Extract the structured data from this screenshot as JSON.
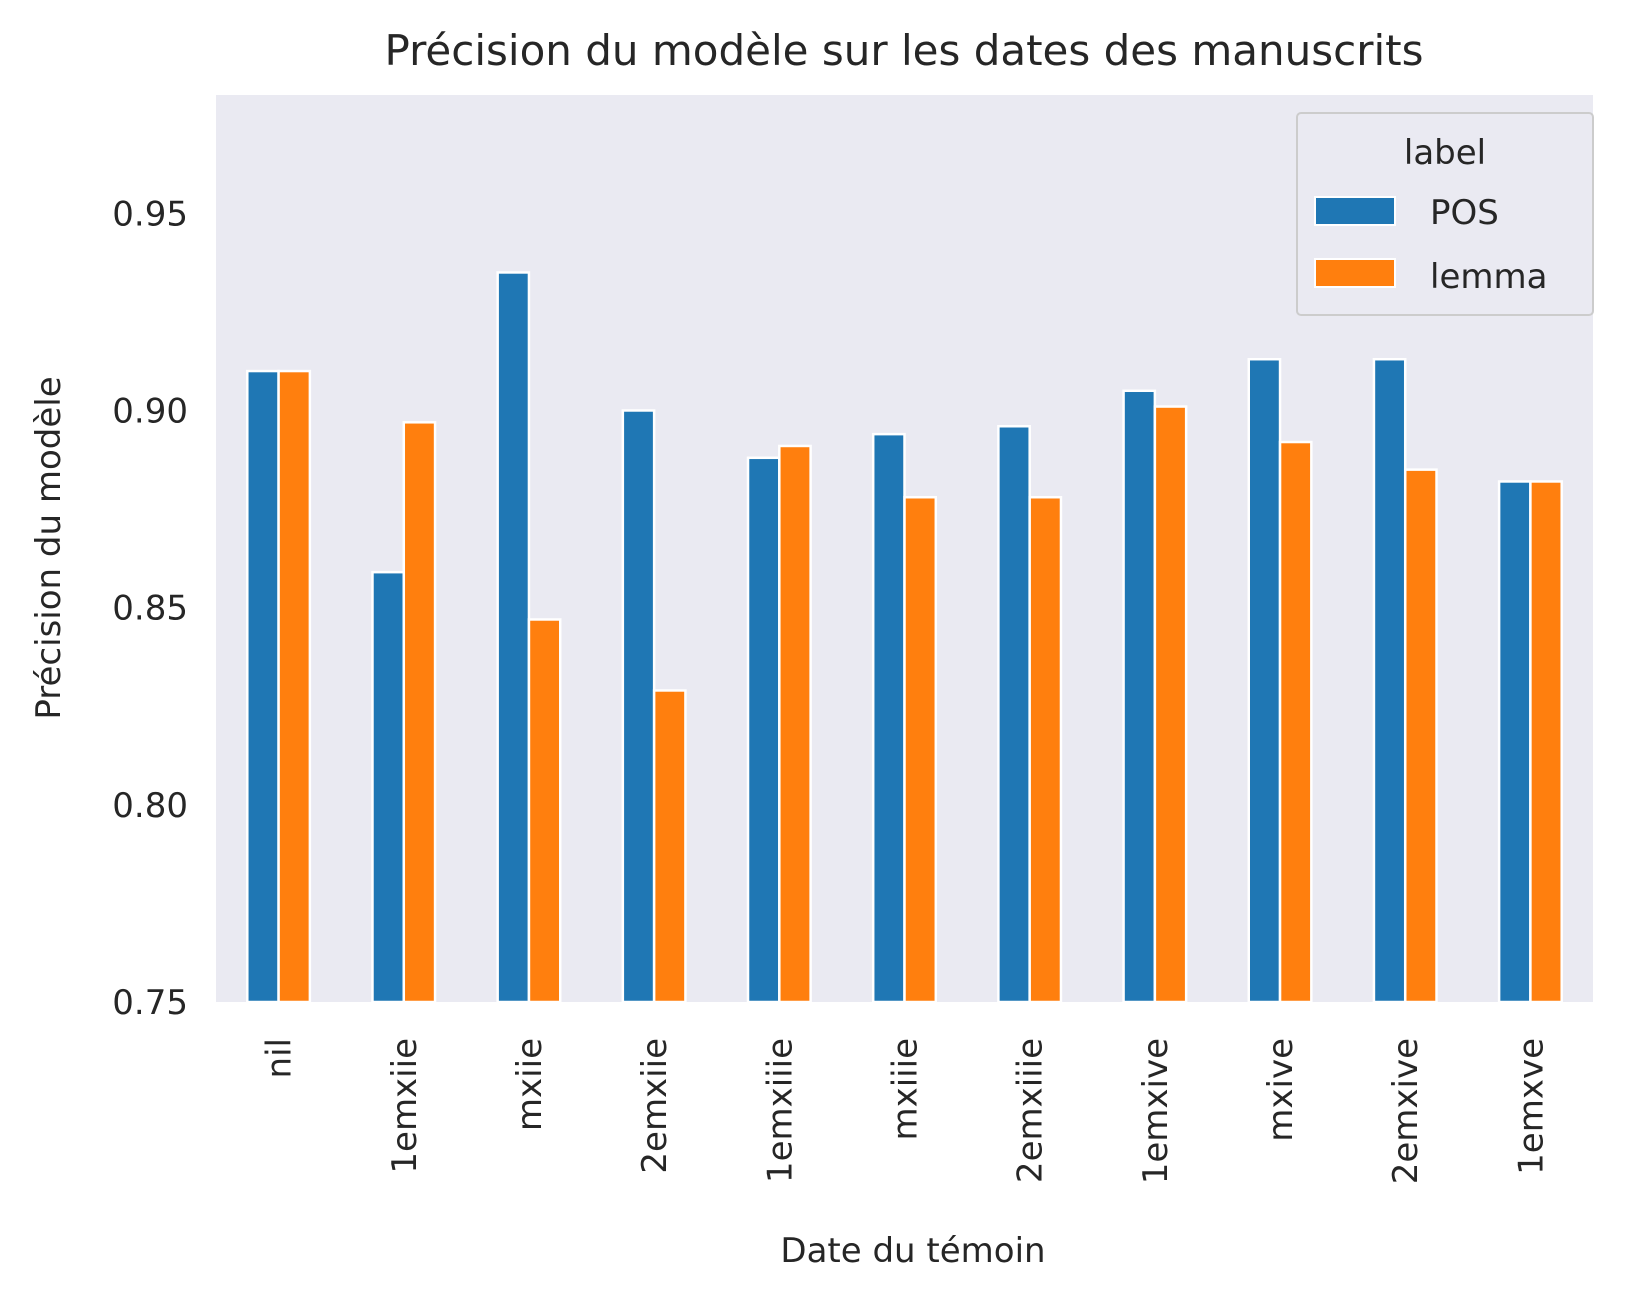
{
  "chart_data": {
    "type": "bar",
    "title": "Précision du modèle sur les dates des manuscrits",
    "xlabel": "Date du témoin",
    "ylabel": "Précision du modèle",
    "categories": [
      "nil",
      "1emxiie",
      "mxiie",
      "2emxiie",
      "1emxiiie",
      "mxiiie",
      "2emxiiie",
      "1emxive",
      "mxive",
      "2emxive",
      "1emxve"
    ],
    "series": [
      {
        "name": "POS",
        "color": "#1f77b4",
        "values": [
          0.91,
          0.859,
          0.935,
          0.9,
          0.888,
          0.894,
          0.896,
          0.905,
          0.913,
          0.913,
          0.882
        ]
      },
      {
        "name": "lemma",
        "color": "#ff7f0e",
        "values": [
          0.91,
          0.897,
          0.847,
          0.829,
          0.891,
          0.878,
          0.878,
          0.901,
          0.892,
          0.885,
          0.882
        ]
      }
    ],
    "ylim": [
      0.75,
      0.98
    ],
    "yticks": [
      "0.75",
      "0.80",
      "0.85",
      "0.90",
      "0.95"
    ],
    "grid": false,
    "legend": {
      "title": "label",
      "position": "top-right"
    },
    "background": "#eaeaf2"
  }
}
